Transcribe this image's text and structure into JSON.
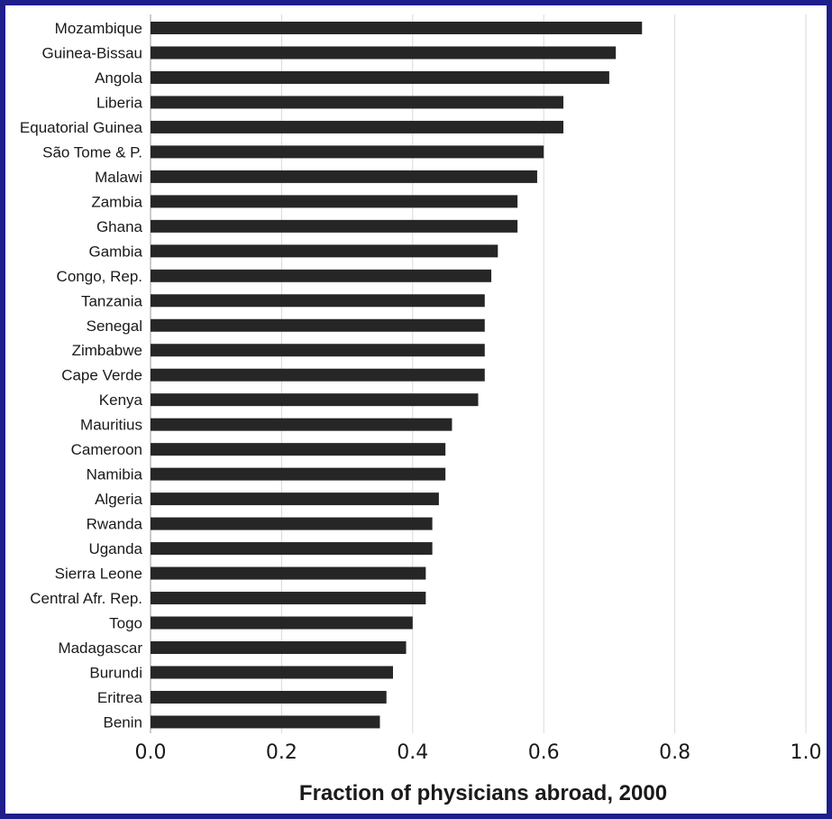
{
  "chart_data": {
    "type": "bar",
    "orientation": "horizontal",
    "categories": [
      "Mozambique",
      "Guinea-Bissau",
      "Angola",
      "Liberia",
      "Equatorial Guinea",
      "São Tome & P.",
      "Malawi",
      "Zambia",
      "Ghana",
      "Gambia",
      "Congo, Rep.",
      "Tanzania",
      "Senegal",
      "Zimbabwe",
      "Cape Verde",
      "Kenya",
      "Mauritius",
      "Cameroon",
      "Namibia",
      "Algeria",
      "Rwanda",
      "Uganda",
      "Sierra Leone",
      "Central Afr. Rep.",
      "Togo",
      "Madagascar",
      "Burundi",
      "Eritrea",
      "Benin"
    ],
    "values": [
      0.75,
      0.71,
      0.7,
      0.63,
      0.63,
      0.6,
      0.59,
      0.56,
      0.56,
      0.53,
      0.52,
      0.51,
      0.51,
      0.51,
      0.51,
      0.5,
      0.46,
      0.45,
      0.45,
      0.44,
      0.43,
      0.43,
      0.42,
      0.42,
      0.4,
      0.39,
      0.37,
      0.36,
      0.35
    ],
    "xlim": [
      0,
      1.0
    ],
    "xticks": [
      "0.0",
      "0.2",
      "0.4",
      "0.6",
      "0.8",
      "1.0"
    ],
    "xlabel": "Fraction of physicians abroad, 2000",
    "ylabel": "",
    "title": "",
    "grid": "vertical",
    "bar_color": "#262626",
    "frame_color": "#1e1e8c"
  }
}
